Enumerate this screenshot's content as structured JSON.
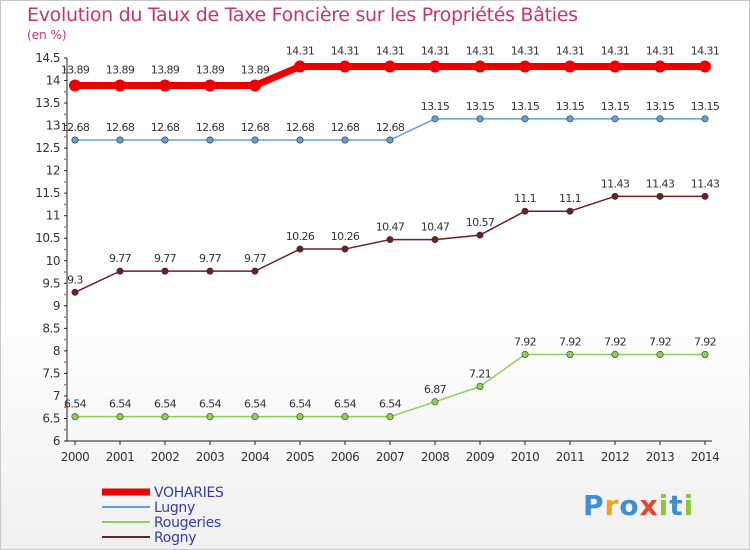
{
  "chart_data": {
    "type": "line",
    "title": "Evolution du Taux de Taxe Foncière sur les Propriétés Bâties",
    "ylabel": "(en %)",
    "ylim": [
      6,
      14.5
    ],
    "ytick_labels": [
      "6",
      "6.5",
      "7",
      "7.5",
      "8",
      "8.5",
      "9",
      "9.5",
      "10",
      "10.5",
      "11",
      "11.5",
      "12",
      "12.5",
      "13",
      "13.5",
      "14",
      "14.5"
    ],
    "categories": [
      "2000",
      "2001",
      "2002",
      "2003",
      "2004",
      "2005",
      "2006",
      "2007",
      "2008",
      "2009",
      "2010",
      "2011",
      "2012",
      "2013",
      "2014"
    ],
    "series": [
      {
        "name": "VOHARIES",
        "color": "#ee0000",
        "text_color": "#3a3aa8",
        "values": [
          13.89,
          13.89,
          13.89,
          13.89,
          13.89,
          14.31,
          14.31,
          14.31,
          14.31,
          14.31,
          14.31,
          14.31,
          14.31,
          14.31,
          14.31
        ],
        "labels": [
          "13.89",
          "13.89",
          "13.89",
          "13.89",
          "13.89",
          "14.31",
          "14.31",
          "14.31",
          "14.31",
          "14.31",
          "14.31",
          "14.31",
          "14.31",
          "14.31",
          "14.31"
        ]
      },
      {
        "name": "Lugny",
        "color": "#5fa0d6",
        "text_color": "#3a3aa8",
        "values": [
          12.68,
          12.68,
          12.68,
          12.68,
          12.68,
          12.68,
          12.68,
          12.68,
          13.15,
          13.15,
          13.15,
          13.15,
          13.15,
          13.15,
          13.15
        ],
        "labels": [
          "12.68",
          "12.68",
          "12.68",
          "12.68",
          "12.68",
          "12.68",
          "12.68",
          "12.68",
          "13.15",
          "13.15",
          "13.15",
          "13.15",
          "13.15",
          "13.15",
          "13.15"
        ]
      },
      {
        "name": "Rougeries",
        "color": "#8ecf5a",
        "text_color": "#3a3aa8",
        "values": [
          6.54,
          6.54,
          6.54,
          6.54,
          6.54,
          6.54,
          6.54,
          6.54,
          6.87,
          7.21,
          7.92,
          7.92,
          7.92,
          7.92,
          7.92
        ],
        "labels": [
          "6.54",
          "6.54",
          "6.54",
          "6.54",
          "6.54",
          "6.54",
          "6.54",
          "6.54",
          "6.87",
          "7.21",
          "7.92",
          "7.92",
          "7.92",
          "7.92",
          "7.92"
        ]
      },
      {
        "name": "Rogny",
        "color": "#6e1f22",
        "text_color": "#3a3aa8",
        "values": [
          9.3,
          9.77,
          9.77,
          9.77,
          9.77,
          10.26,
          10.26,
          10.47,
          10.47,
          10.57,
          11.1,
          11.1,
          11.43,
          11.43,
          11.43
        ],
        "labels": [
          "9.3",
          "9.77",
          "9.77",
          "9.77",
          "9.77",
          "10.26",
          "10.26",
          "10.47",
          "10.47",
          "10.57",
          "11.1",
          "11.1",
          "11.43",
          "11.43",
          "11.43"
        ]
      }
    ]
  },
  "logo": {
    "letters": [
      "P",
      "r",
      "o",
      "x",
      "i",
      "t",
      "i"
    ],
    "colors": [
      "#3f8fd0",
      "#f2a31c",
      "#3f8fd0",
      "#e8432e",
      "#8cc63f",
      "#3f8fd0",
      "#8cc63f"
    ]
  }
}
